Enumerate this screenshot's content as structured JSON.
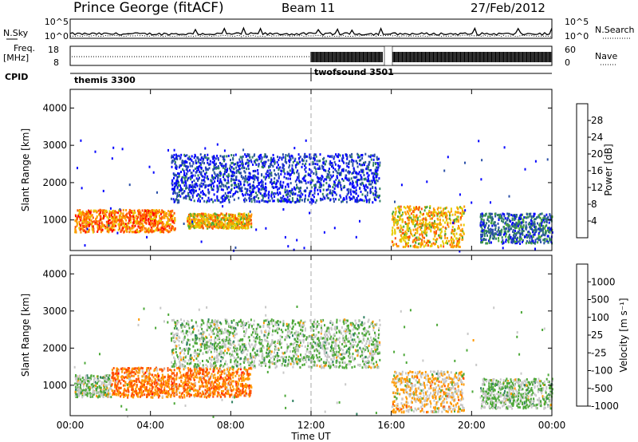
{
  "header": {
    "station": "Prince George (fitACF)",
    "beam": "Beam 11",
    "date": "27/Feb/2012"
  },
  "noise_panel": {
    "left_label": "N.Sky",
    "right_label": "N.Search",
    "left_ticks": [
      "10^5",
      "10^0"
    ],
    "right_ticks": [
      "10^5",
      "10^0"
    ]
  },
  "freq_panel": {
    "left_label_line1": "Freq.",
    "left_label_line2": "[MHz]",
    "right_label": "Nave",
    "left_ticks": [
      "18",
      "8"
    ],
    "right_ticks": [
      "60",
      "0"
    ]
  },
  "cpid_panel": {
    "label": "CPID",
    "modes": [
      {
        "name": "themis 3300",
        "start_hour": 0
      },
      {
        "name": "twofsound 3501",
        "start_hour": 12
      }
    ]
  },
  "power_panel": {
    "ylabel": "Slant Range [km]",
    "yticks": [
      "4000",
      "3000",
      "2000",
      "1000"
    ],
    "colorbar_label": "Power [dB]",
    "colorbar_ticks": [
      "28",
      "24",
      "20",
      "16",
      "12",
      "8",
      "4"
    ],
    "colors": [
      "#0000ff",
      "#2a4fa8",
      "#2f8060",
      "#4ca838",
      "#e6cc00",
      "#ff9900",
      "#ff5000",
      "#ff0000"
    ]
  },
  "velocity_panel": {
    "ylabel": "Slant Range [km]",
    "yticks": [
      "4000",
      "3000",
      "2000",
      "1000"
    ],
    "colorbar_label": "Velocity [m s⁻¹]",
    "colorbar_ticks": [
      "1000",
      "500",
      "100",
      "25",
      "-25",
      "-100",
      "-500",
      "-1000"
    ],
    "colors": [
      "#1a2aa0",
      "#2a4fa8",
      "#2f8060",
      "#4ca838",
      "#c8c8c8",
      "#ff9900",
      "#ff5000",
      "#ff0000"
    ]
  },
  "x_axis": {
    "label": "Time UT",
    "ticks": [
      "00:00",
      "04:00",
      "08:00",
      "12:00",
      "16:00",
      "20:00",
      "00:00"
    ]
  },
  "chart_data": {
    "type": "heatmap",
    "x_range_hours": [
      0,
      24
    ],
    "y_range_km": [
      180,
      4500
    ],
    "data_gap_hours": [
      15.6,
      15.9
    ],
    "power_scatter": [
      {
        "t_start": 0.2,
        "t_end": 5.2,
        "range_km": [
          700,
          1300
        ],
        "power_db": 28
      },
      {
        "t_start": 5.8,
        "t_end": 9.0,
        "range_km": [
          800,
          1200
        ],
        "power_db": 22
      },
      {
        "t_start": 5.0,
        "t_end": 15.4,
        "range_km": [
          1500,
          2800
        ],
        "power_db": 6
      },
      {
        "t_start": 16.0,
        "t_end": 19.6,
        "range_km": [
          300,
          1400
        ],
        "power_db": 22
      },
      {
        "t_start": 20.4,
        "t_end": 24.0,
        "range_km": [
          400,
          1200
        ],
        "power_db": 12
      }
    ],
    "velocity_scatter": [
      {
        "t_start": 0.2,
        "t_end": 2.0,
        "range_km": [
          700,
          1300
        ],
        "velocity": 0
      },
      {
        "t_start": 2.0,
        "t_end": 9.0,
        "range_km": [
          700,
          1500
        ],
        "velocity": -300
      },
      {
        "t_start": 5.0,
        "t_end": 15.4,
        "range_km": [
          1500,
          2800
        ],
        "velocity": 0
      },
      {
        "t_start": 16.0,
        "t_end": 19.6,
        "range_km": [
          300,
          1400
        ],
        "velocity": -100
      },
      {
        "t_start": 20.4,
        "t_end": 24.0,
        "range_km": [
          400,
          1200
        ],
        "velocity": 0
      }
    ]
  }
}
